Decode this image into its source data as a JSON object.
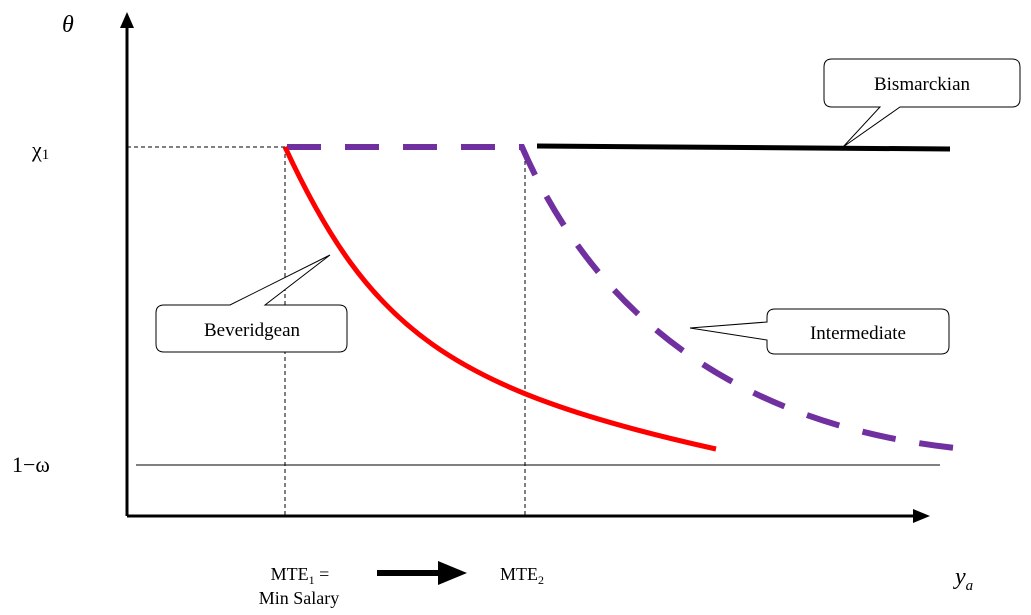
{
  "axes": {
    "y_label": "θ",
    "x_label_main": "y",
    "x_label_sub": "a",
    "y_tick_top": "χ",
    "y_tick_top_sub": "1",
    "y_tick_bottom": "1−ω"
  },
  "x_markers": {
    "mte1_prefix": "MTE",
    "mte1_sub": "1",
    "mte1_suffix": " =",
    "mte1_line2": "Min Salary",
    "mte2_prefix": "MTE",
    "mte2_sub": "2"
  },
  "callouts": {
    "bismarckian": "Bismarckian",
    "beveridgean": "Beveridgean",
    "intermediate": "Intermediate"
  },
  "colors": {
    "beveridgean": "#ff0000",
    "intermediate": "#7030a0",
    "bismarckian": "#000000",
    "axis": "#000000"
  }
}
